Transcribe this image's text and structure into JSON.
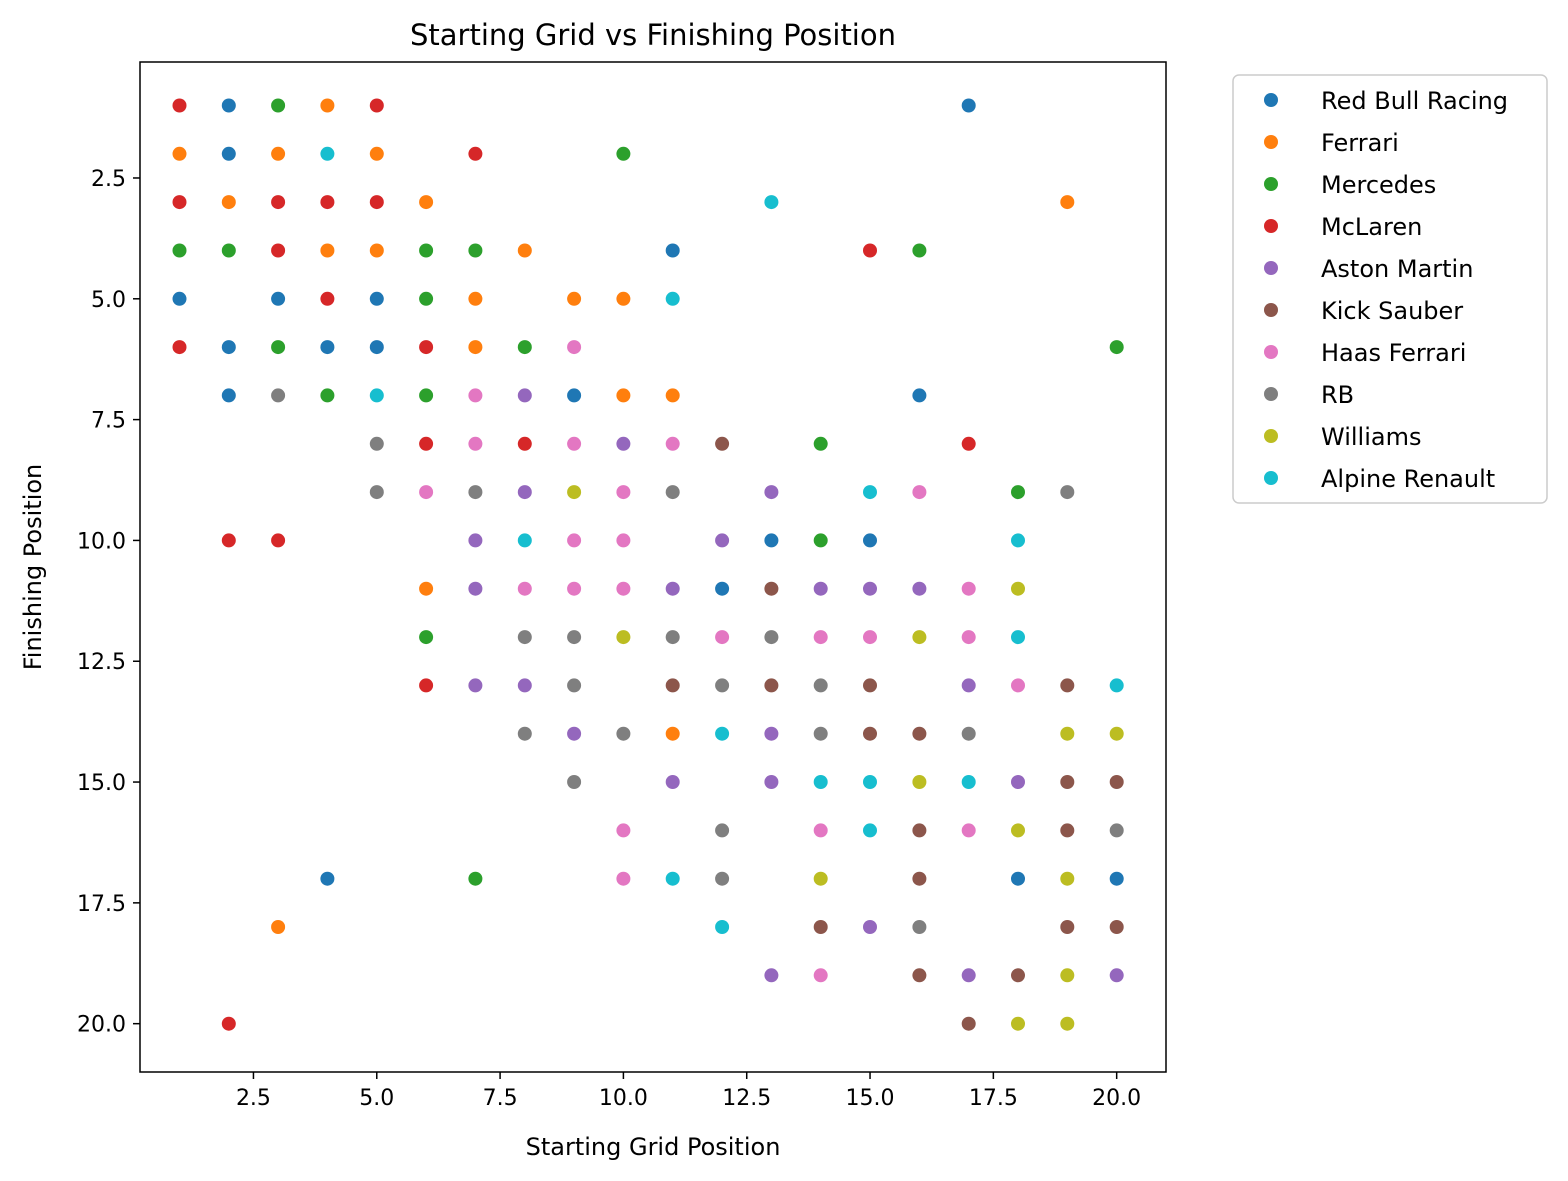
{
  "chart_data": {
    "type": "scatter",
    "title": "Starting Grid vs Finishing Position",
    "xlabel": "Starting Grid Position",
    "ylabel": "Finishing Position",
    "xlim": [
      0.2,
      21.0
    ],
    "ylim": [
      21.0,
      0.1
    ],
    "y_inverted": true,
    "grid": false,
    "legend_position": "outside-top-right",
    "xticks": [
      {
        "value": 2.5,
        "label": "2.5"
      },
      {
        "value": 5.0,
        "label": "5.0"
      },
      {
        "value": 7.5,
        "label": "7.5"
      },
      {
        "value": 10.0,
        "label": "10.0"
      },
      {
        "value": 12.5,
        "label": "12.5"
      },
      {
        "value": 15.0,
        "label": "15.0"
      },
      {
        "value": 17.5,
        "label": "17.5"
      },
      {
        "value": 20.0,
        "label": "20.0"
      }
    ],
    "yticks": [
      {
        "value": 2.5,
        "label": "2.5"
      },
      {
        "value": 5.0,
        "label": "5.0"
      },
      {
        "value": 7.5,
        "label": "7.5"
      },
      {
        "value": 10.0,
        "label": "10.0"
      },
      {
        "value": 12.5,
        "label": "12.5"
      },
      {
        "value": 15.0,
        "label": "15.0"
      },
      {
        "value": 17.5,
        "label": "17.5"
      },
      {
        "value": 20.0,
        "label": "20.0"
      }
    ],
    "series": [
      {
        "name": "Red Bull Racing",
        "color": "#1f77b4",
        "points": [
          [
            2,
            1
          ],
          [
            17,
            1
          ],
          [
            2,
            2
          ],
          [
            11,
            4
          ],
          [
            1,
            5
          ],
          [
            3,
            5
          ],
          [
            5,
            5
          ],
          [
            2,
            6
          ],
          [
            4,
            6
          ],
          [
            5,
            6
          ],
          [
            2,
            7
          ],
          [
            9,
            7
          ],
          [
            16,
            7
          ],
          [
            13,
            10
          ],
          [
            15,
            10
          ],
          [
            12,
            11
          ],
          [
            4,
            17
          ],
          [
            18,
            17
          ],
          [
            20,
            17
          ]
        ]
      },
      {
        "name": "Ferrari",
        "color": "#ff7f0e",
        "points": [
          [
            4,
            1
          ],
          [
            1,
            2
          ],
          [
            3,
            2
          ],
          [
            5,
            2
          ],
          [
            2,
            3
          ],
          [
            6,
            3
          ],
          [
            19,
            3
          ],
          [
            4,
            4
          ],
          [
            5,
            4
          ],
          [
            8,
            4
          ],
          [
            7,
            5
          ],
          [
            9,
            5
          ],
          [
            10,
            5
          ],
          [
            7,
            6
          ],
          [
            10,
            7
          ],
          [
            11,
            7
          ],
          [
            6,
            11
          ],
          [
            11,
            14
          ],
          [
            3,
            18
          ]
        ]
      },
      {
        "name": "Mercedes",
        "color": "#2ca02c",
        "points": [
          [
            3,
            1
          ],
          [
            10,
            2
          ],
          [
            1,
            4
          ],
          [
            2,
            4
          ],
          [
            6,
            4
          ],
          [
            7,
            4
          ],
          [
            16,
            4
          ],
          [
            6,
            5
          ],
          [
            3,
            6
          ],
          [
            8,
            6
          ],
          [
            20,
            6
          ],
          [
            4,
            7
          ],
          [
            6,
            7
          ],
          [
            14,
            8
          ],
          [
            18,
            9
          ],
          [
            14,
            10
          ],
          [
            6,
            12
          ],
          [
            7,
            17
          ]
        ]
      },
      {
        "name": "McLaren",
        "color": "#d62728",
        "points": [
          [
            1,
            1
          ],
          [
            5,
            1
          ],
          [
            7,
            2
          ],
          [
            1,
            3
          ],
          [
            3,
            3
          ],
          [
            4,
            3
          ],
          [
            5,
            3
          ],
          [
            3,
            4
          ],
          [
            15,
            4
          ],
          [
            4,
            5
          ],
          [
            1,
            6
          ],
          [
            6,
            6
          ],
          [
            6,
            8
          ],
          [
            8,
            8
          ],
          [
            17,
            8
          ],
          [
            2,
            10
          ],
          [
            3,
            10
          ],
          [
            6,
            13
          ],
          [
            2,
            20
          ]
        ]
      },
      {
        "name": "Aston Martin",
        "color": "#9467bd",
        "points": [
          [
            8,
            7
          ],
          [
            10,
            8
          ],
          [
            8,
            9
          ],
          [
            13,
            9
          ],
          [
            7,
            10
          ],
          [
            12,
            10
          ],
          [
            7,
            11
          ],
          [
            11,
            11
          ],
          [
            14,
            11
          ],
          [
            15,
            11
          ],
          [
            16,
            11
          ],
          [
            7,
            13
          ],
          [
            8,
            13
          ],
          [
            17,
            13
          ],
          [
            9,
            14
          ],
          [
            13,
            14
          ],
          [
            11,
            15
          ],
          [
            13,
            15
          ],
          [
            18,
            15
          ],
          [
            15,
            18
          ],
          [
            13,
            19
          ],
          [
            17,
            19
          ],
          [
            20,
            19
          ]
        ]
      },
      {
        "name": "Kick Sauber",
        "color": "#8c564b",
        "points": [
          [
            12,
            8
          ],
          [
            13,
            11
          ],
          [
            11,
            13
          ],
          [
            13,
            13
          ],
          [
            15,
            13
          ],
          [
            19,
            13
          ],
          [
            15,
            14
          ],
          [
            16,
            14
          ],
          [
            19,
            15
          ],
          [
            20,
            15
          ],
          [
            16,
            16
          ],
          [
            19,
            16
          ],
          [
            16,
            17
          ],
          [
            14,
            18
          ],
          [
            19,
            18
          ],
          [
            20,
            18
          ],
          [
            16,
            19
          ],
          [
            18,
            19
          ],
          [
            17,
            20
          ]
        ]
      },
      {
        "name": "Haas Ferrari",
        "color": "#e377c2",
        "points": [
          [
            9,
            6
          ],
          [
            7,
            7
          ],
          [
            7,
            8
          ],
          [
            9,
            8
          ],
          [
            11,
            8
          ],
          [
            6,
            9
          ],
          [
            10,
            9
          ],
          [
            16,
            9
          ],
          [
            9,
            10
          ],
          [
            10,
            10
          ],
          [
            8,
            11
          ],
          [
            9,
            11
          ],
          [
            10,
            11
          ],
          [
            17,
            11
          ],
          [
            12,
            12
          ],
          [
            14,
            12
          ],
          [
            15,
            12
          ],
          [
            17,
            12
          ],
          [
            18,
            13
          ],
          [
            10,
            16
          ],
          [
            14,
            16
          ],
          [
            17,
            16
          ],
          [
            10,
            17
          ],
          [
            14,
            19
          ]
        ]
      },
      {
        "name": "RB",
        "color": "#7f7f7f",
        "points": [
          [
            3,
            7
          ],
          [
            5,
            8
          ],
          [
            5,
            9
          ],
          [
            7,
            9
          ],
          [
            11,
            9
          ],
          [
            19,
            9
          ],
          [
            8,
            12
          ],
          [
            9,
            12
          ],
          [
            11,
            12
          ],
          [
            13,
            12
          ],
          [
            9,
            13
          ],
          [
            12,
            13
          ],
          [
            14,
            13
          ],
          [
            8,
            14
          ],
          [
            10,
            14
          ],
          [
            14,
            14
          ],
          [
            17,
            14
          ],
          [
            9,
            15
          ],
          [
            12,
            16
          ],
          [
            20,
            16
          ],
          [
            12,
            17
          ],
          [
            16,
            18
          ]
        ]
      },
      {
        "name": "Williams",
        "color": "#bcbd22",
        "points": [
          [
            9,
            9
          ],
          [
            18,
            11
          ],
          [
            10,
            12
          ],
          [
            16,
            12
          ],
          [
            19,
            14
          ],
          [
            20,
            14
          ],
          [
            16,
            15
          ],
          [
            18,
            16
          ],
          [
            14,
            17
          ],
          [
            19,
            17
          ],
          [
            19,
            19
          ],
          [
            18,
            20
          ],
          [
            19,
            20
          ]
        ]
      },
      {
        "name": "Alpine Renault",
        "color": "#17becf",
        "points": [
          [
            4,
            2
          ],
          [
            13,
            3
          ],
          [
            11,
            5
          ],
          [
            5,
            7
          ],
          [
            15,
            9
          ],
          [
            8,
            10
          ],
          [
            18,
            10
          ],
          [
            18,
            12
          ],
          [
            20,
            13
          ],
          [
            12,
            14
          ],
          [
            14,
            15
          ],
          [
            15,
            15
          ],
          [
            17,
            15
          ],
          [
            15,
            16
          ],
          [
            11,
            17
          ],
          [
            12,
            18
          ]
        ]
      }
    ]
  }
}
